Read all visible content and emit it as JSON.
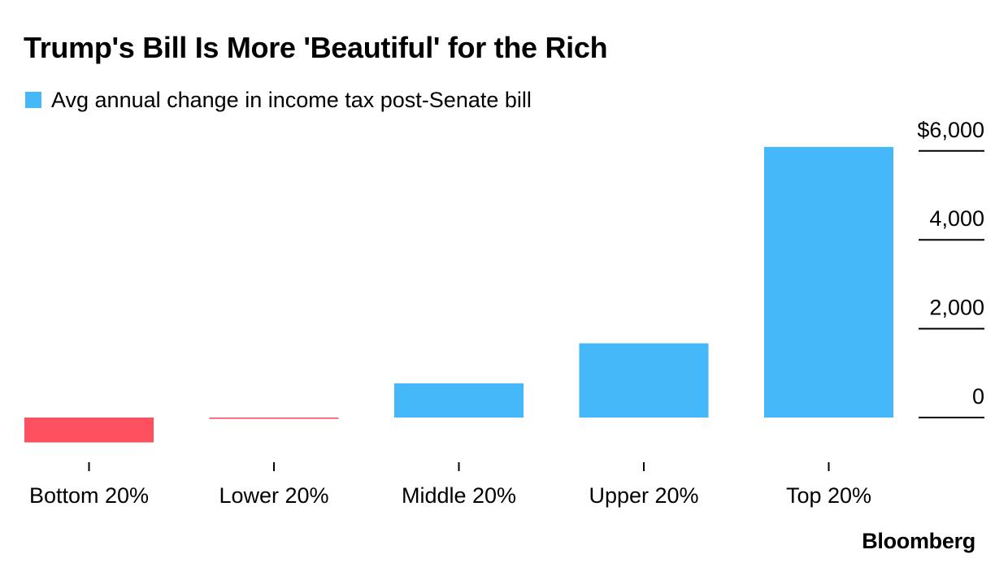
{
  "title": "Trump's Bill Is More 'Beautiful' for the Rich",
  "legend": {
    "label": "Avg annual change in income tax post-Senate bill",
    "color": "#44b8f9"
  },
  "brand": "Bloomberg",
  "colors": {
    "positive": "#44b8f9",
    "negative": "#fe5160",
    "axis": "#000000"
  },
  "chart_data": {
    "type": "bar",
    "title": "Trump's Bill Is More 'Beautiful' for the Rich",
    "xlabel": "",
    "ylabel": "",
    "categories": [
      "Bottom 20%",
      "Lower 20%",
      "Middle 20%",
      "Upper 20%",
      "Top 20%"
    ],
    "series": [
      {
        "name": "Avg annual change in income tax post-Senate bill",
        "values": [
          -560,
          -30,
          770,
          1670,
          6090
        ]
      }
    ],
    "ylim": [
      -1000,
      6000
    ],
    "yticks": [
      0,
      2000,
      4000,
      6000
    ],
    "ytick_labels": [
      "0",
      "2,000",
      "4,000",
      "$6,000"
    ],
    "y_axis_position": "right",
    "grid": false,
    "legend_position": "top-left"
  }
}
